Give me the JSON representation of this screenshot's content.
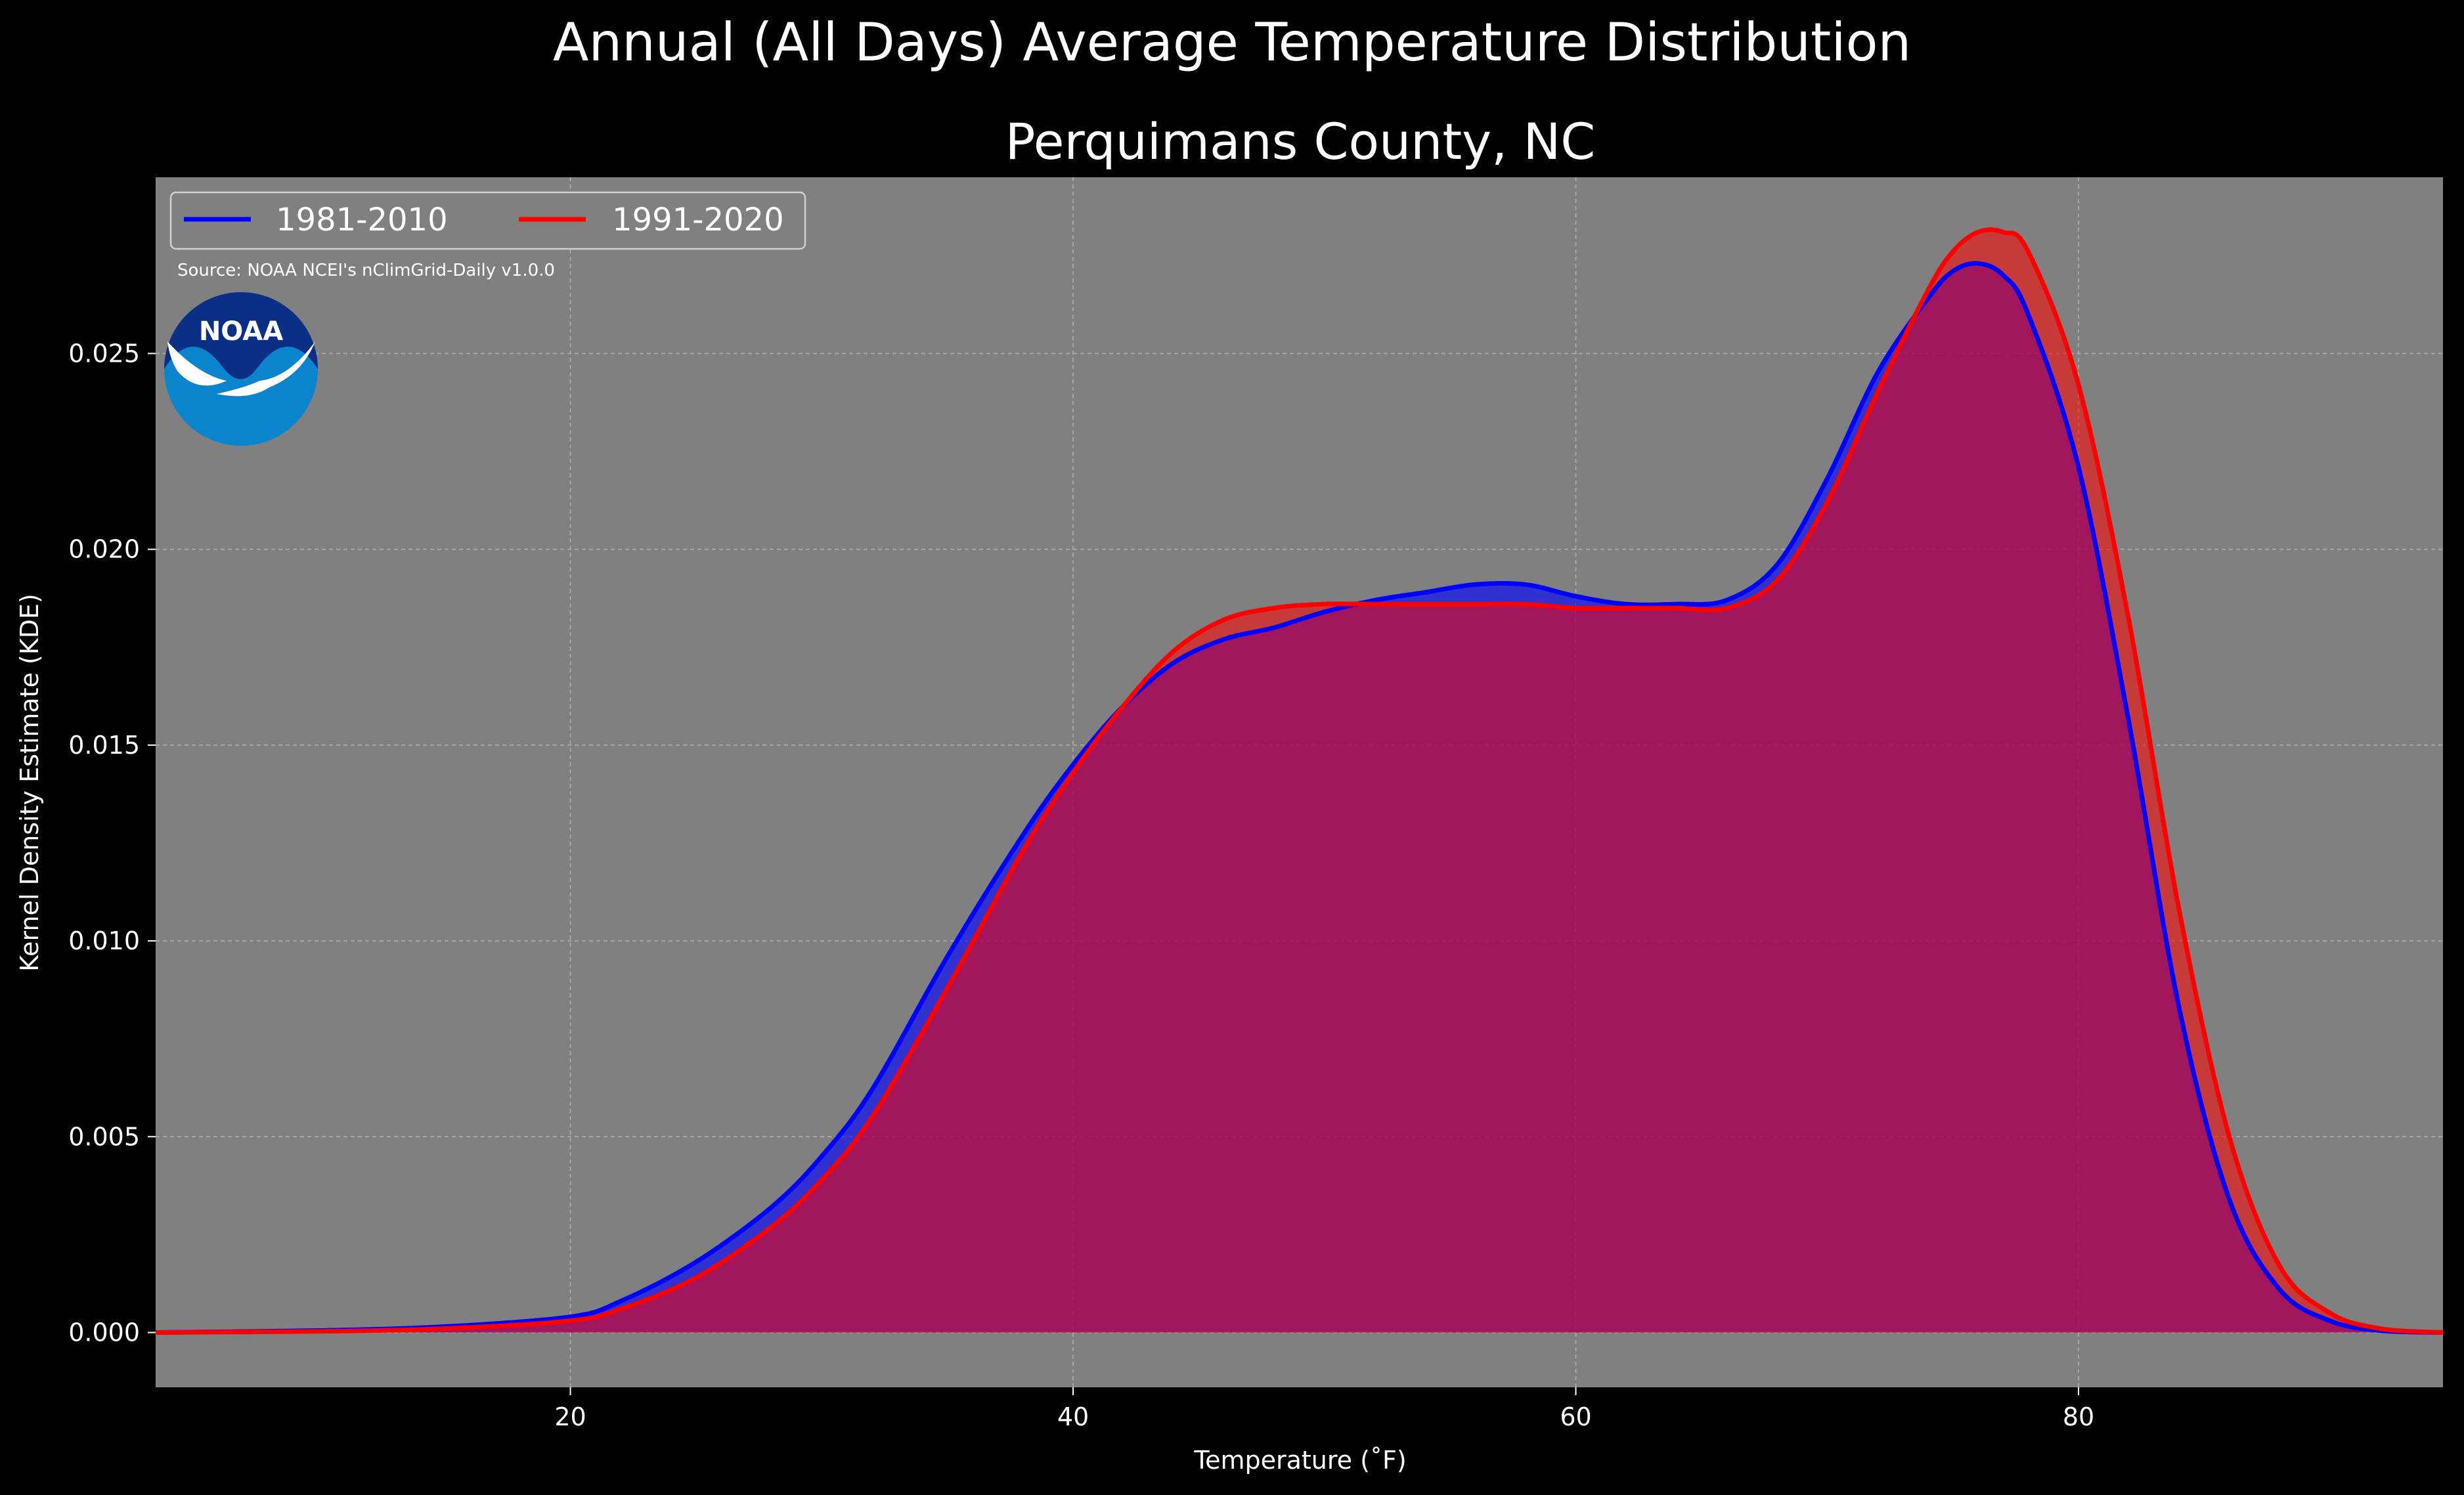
{
  "chart_data": {
    "type": "area",
    "title": "Annual (All Days) Average Temperature Distribution",
    "subtitle": "Perquimans County, NC",
    "xlabel": "Temperature ($^\\circ$F)",
    "xlabel_display": "Temperature (˚F)",
    "ylabel": "Kernel Density Estimate (KDE)",
    "xlim": [
      3.5,
      94.5
    ],
    "ylim": [
      -0.0014,
      0.0295
    ],
    "x_ticks": [
      20,
      40,
      60,
      80
    ],
    "x_tick_labels": [
      "20",
      "40",
      "60",
      "80"
    ],
    "y_ticks": [
      0.0,
      0.005,
      0.01,
      0.015,
      0.02,
      0.025
    ],
    "y_tick_labels": [
      "0.000",
      "0.005",
      "0.010",
      "0.015",
      "0.020",
      "0.025"
    ],
    "grid": true,
    "legend_position": "top-left",
    "background_color": "#808080",
    "source_note": "Source: NOAA NCEI's nClimGrid-Daily v1.0.0",
    "logo_text": "NOAA",
    "series": [
      {
        "name": "1981-2010",
        "color": "#0000ff",
        "x": [
          3.5,
          10,
          15,
          20,
          22,
          25,
          28,
          30,
          32,
          35,
          38,
          40,
          42,
          44,
          46,
          48,
          50,
          52,
          54,
          56,
          58,
          60,
          62,
          64,
          66,
          68,
          70,
          72,
          74,
          75,
          76,
          77,
          78,
          80,
          82,
          84,
          86,
          88,
          90,
          92,
          94.5
        ],
        "y": [
          0.0,
          5e-05,
          0.00015,
          0.0004,
          0.0008,
          0.0018,
          0.0032,
          0.0045,
          0.0062,
          0.0096,
          0.0127,
          0.0145,
          0.016,
          0.0171,
          0.0177,
          0.018,
          0.0184,
          0.0187,
          0.0189,
          0.0191,
          0.0191,
          0.0188,
          0.0186,
          0.0186,
          0.0187,
          0.0196,
          0.0218,
          0.0245,
          0.0264,
          0.0271,
          0.0273,
          0.027,
          0.026,
          0.0221,
          0.0156,
          0.0083,
          0.0034,
          0.0011,
          0.0003,
          5e-05,
          0.0
        ]
      },
      {
        "name": "1991-2020",
        "color": "#ff0000",
        "x": [
          3.5,
          10,
          15,
          20,
          22,
          25,
          28,
          30,
          32,
          35,
          38,
          40,
          42,
          44,
          46,
          48,
          50,
          52,
          54,
          56,
          58,
          60,
          62,
          64,
          66,
          68,
          70,
          72,
          74,
          75,
          76,
          77,
          78,
          80,
          82,
          84,
          86,
          88,
          90,
          92,
          94.5
        ],
        "y": [
          0.0,
          3e-05,
          0.0001,
          0.0003,
          0.0006,
          0.0014,
          0.0027,
          0.0039,
          0.0055,
          0.0088,
          0.0123,
          0.0143,
          0.016,
          0.0174,
          0.0182,
          0.0185,
          0.0186,
          0.0186,
          0.0186,
          0.0186,
          0.0186,
          0.0185,
          0.0185,
          0.0185,
          0.0185,
          0.0192,
          0.0212,
          0.024,
          0.0266,
          0.0276,
          0.0281,
          0.0281,
          0.0276,
          0.0242,
          0.0182,
          0.0108,
          0.005,
          0.0017,
          0.0005,
          0.0001,
          0.0
        ]
      }
    ]
  }
}
